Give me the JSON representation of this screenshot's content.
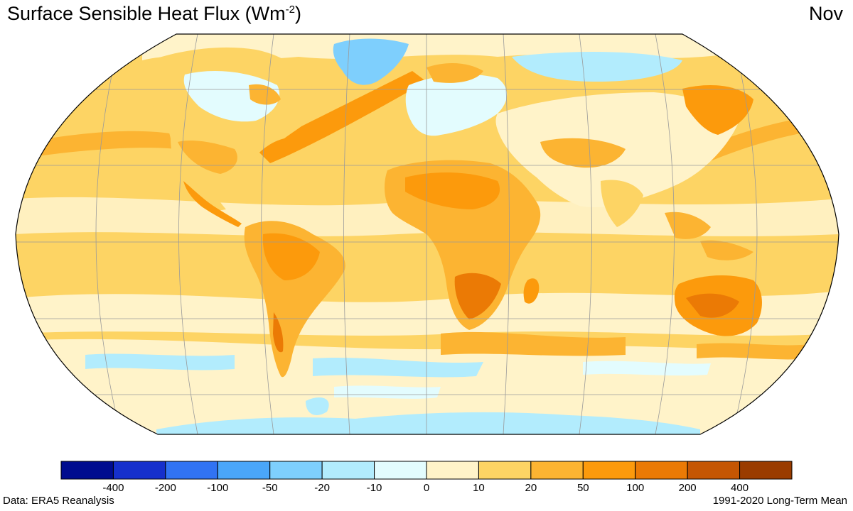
{
  "header": {
    "title_main": "Surface Sensible Heat Flux (Wm",
    "title_sup": "-2",
    "title_end": ")",
    "month": "Nov"
  },
  "legend": {
    "colors": [
      "#000c8f",
      "#1630cc",
      "#3173f3",
      "#4aa6f9",
      "#7ecffd",
      "#b2ecfd",
      "#e3fcfe",
      "#fff3c9",
      "#fdd464",
      "#fcb432",
      "#fc9a0c",
      "#eb7a05",
      "#c55603",
      "#9a3c00"
    ],
    "ticks": [
      "-400",
      "-200",
      "-100",
      "-50",
      "-20",
      "-10",
      "0",
      "10",
      "20",
      "50",
      "100",
      "200",
      "400"
    ]
  },
  "footer": {
    "source": "Data: ERA5 Reanalysis",
    "period": "1991-2020 Long-Term Mean"
  }
}
